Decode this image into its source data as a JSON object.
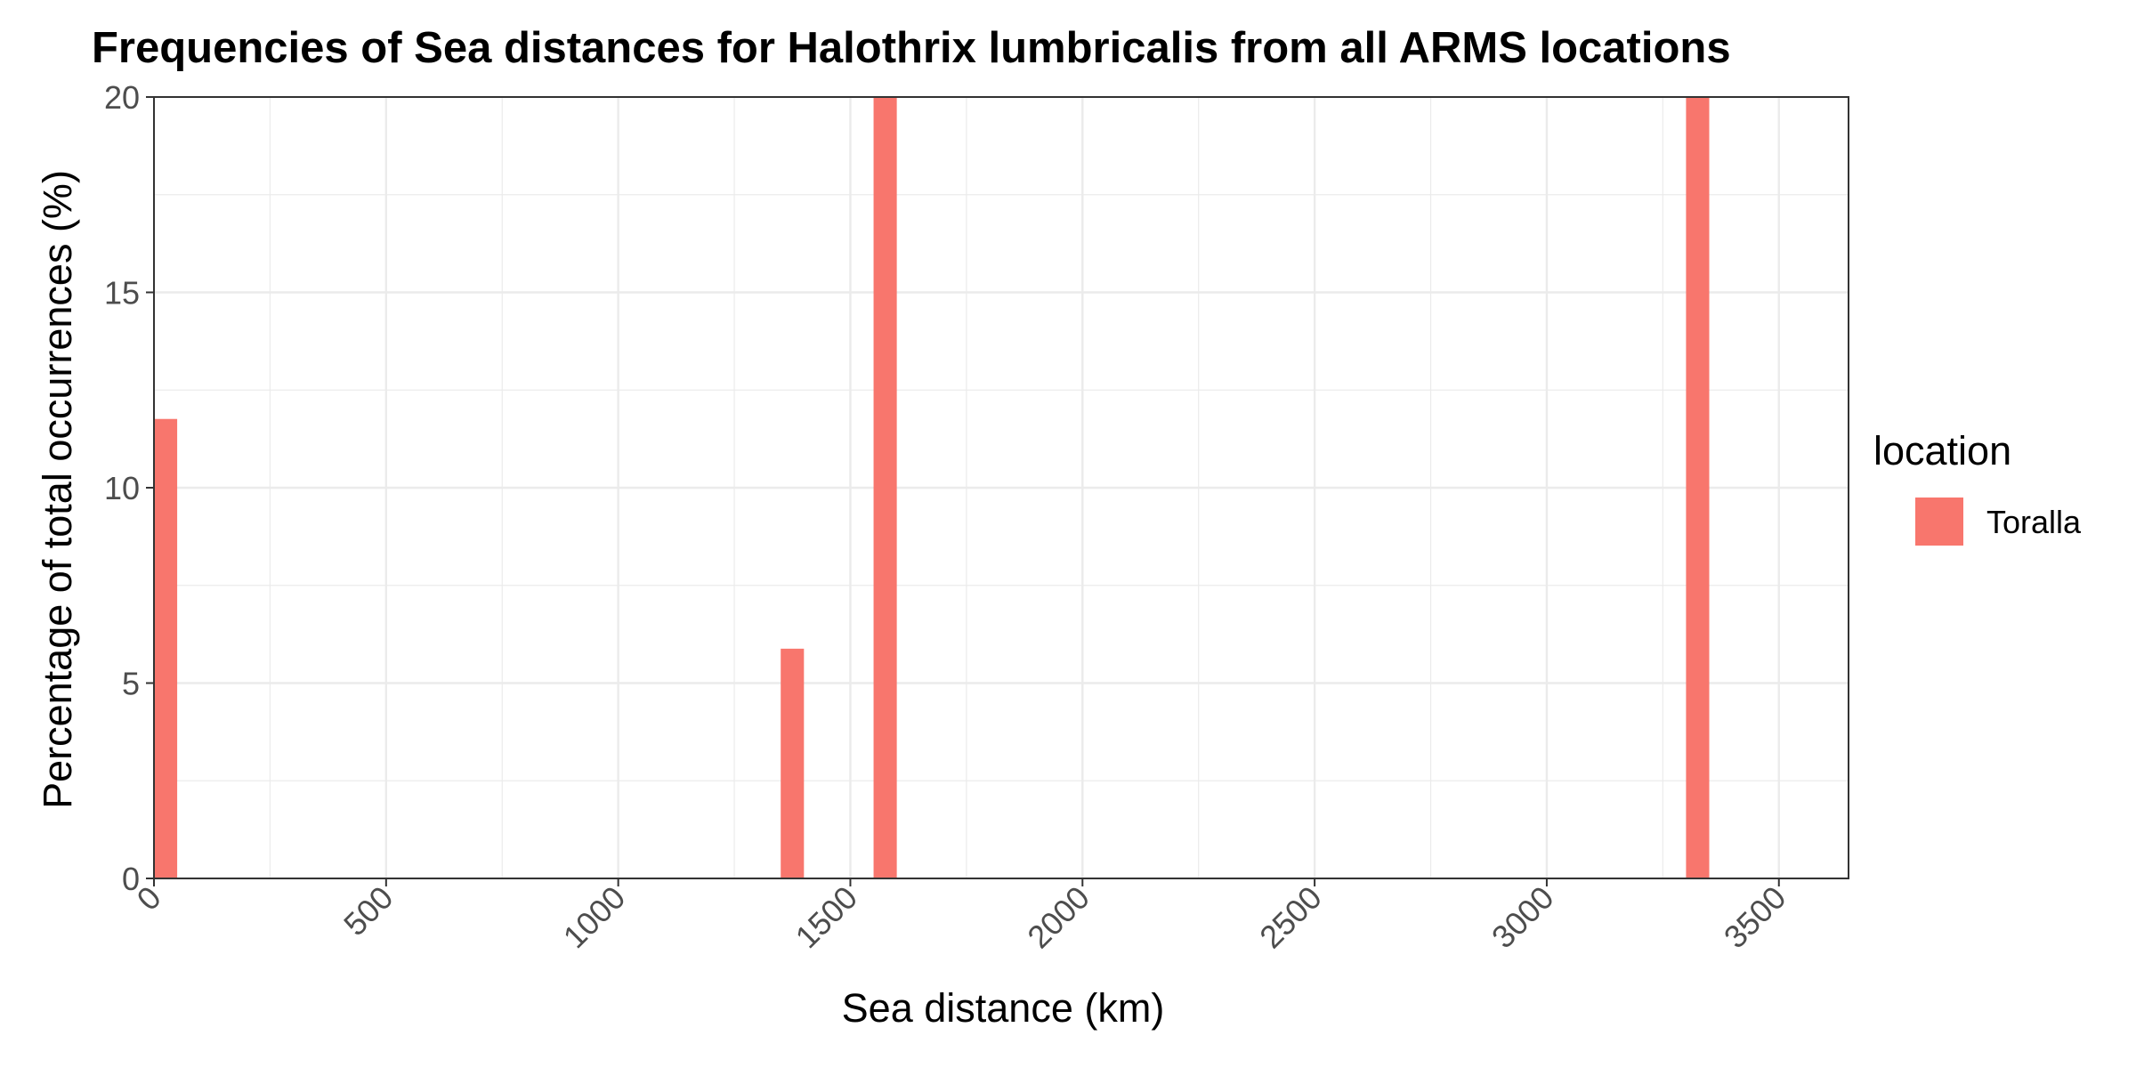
{
  "chart_data": {
    "type": "bar",
    "title": "Frequencies of Sea distances for Halothrix lumbricalis from all ARMS locations",
    "xlabel": "Sea distance (km)",
    "ylabel": "Percentage of total occurrences (%)",
    "xlim": [
      0,
      3650
    ],
    "ylim": [
      0,
      20
    ],
    "x_ticks": [
      0,
      500,
      1000,
      1500,
      2000,
      2500,
      3000,
      3500
    ],
    "x_tick_labels": [
      "0",
      "500",
      "1000",
      "1500",
      "2000",
      "2500",
      "3000",
      "3500"
    ],
    "y_ticks": [
      0,
      5,
      10,
      15,
      20
    ],
    "y_tick_labels": [
      "0",
      "5",
      "10",
      "15",
      "20"
    ],
    "bin_width": 50,
    "bars": [
      {
        "x_start": 0,
        "x_end": 50,
        "value": 11.76
      },
      {
        "x_start": 1350,
        "x_end": 1400,
        "value": 5.88
      },
      {
        "x_start": 1550,
        "x_end": 1600,
        "value": 20
      },
      {
        "x_start": 3300,
        "x_end": 3350,
        "value": 20
      }
    ],
    "series": [
      {
        "name": "Toralla",
        "color": "#F8766D"
      }
    ],
    "legend": {
      "title": "location",
      "position": "right"
    },
    "grid": true
  }
}
